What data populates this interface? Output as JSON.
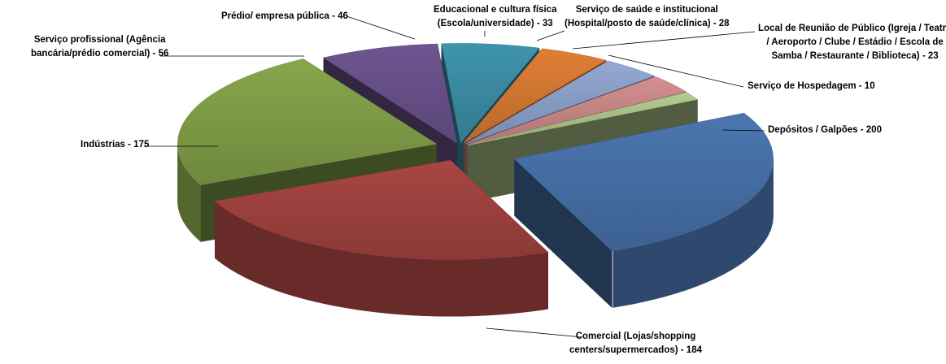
{
  "chart_data": {
    "type": "pie",
    "style": "3d-exploded",
    "slices": [
      {
        "name": "Depósitos / Galpões",
        "value": 200,
        "color": "#4a76b0",
        "label_lines": [
          "Depósitos  / Galpões - 200"
        ]
      },
      {
        "name": "Comercial (Lojas/shopping centers/supermercados)",
        "value": 184,
        "color": "#a84643",
        "label_lines": [
          "Comercial  (Lojas/shopping",
          "centers/supermercados)  - 184"
        ]
      },
      {
        "name": "Indústrias",
        "value": 175,
        "color": "#87a64b",
        "label_lines": [
          "Indústrias  - 175"
        ]
      },
      {
        "name": "Serviço profissional (Agência bancária/prédio comercial)",
        "value": 56,
        "color": "#6e5591",
        "label_lines": [
          "Serviço profissional  (Agência",
          "bancária/prédio  comercial) - 56"
        ]
      },
      {
        "name": "Prédio/ empresa pública",
        "value": 46,
        "color": "#3f94ad",
        "label_lines": [
          "Prédio/  empresa pública - 46"
        ]
      },
      {
        "name": "Educacional e cultura física (Escola/universidade)",
        "value": 33,
        "color": "#e07f35",
        "label_lines": [
          "Educacional  e cultura  física",
          "(Escola/universidade)  - 33"
        ]
      },
      {
        "name": "Serviço de saúde e institucional (Hospital/posto de saúde/clínica)",
        "value": 28,
        "color": "#93a8d3",
        "label_lines": [
          "Serviço de saúde  e institucional",
          "(Hospital/posto  de saúde/clínica) - 28"
        ]
      },
      {
        "name": "Local de Reunião de Público (Igreja / Teatro / Aeroporto / Clube / Estádio / Escola de Samba / Restaurante / Biblioteca)",
        "value": 23,
        "color": "#d48f8f",
        "label_lines": [
          "Local de Reunião de Público  (Igreja / Teatro",
          "/ Aeroporto   / Clube  / Estádio / Escola de",
          "Samba  / Restaurante  / Biblioteca) - 23"
        ]
      },
      {
        "name": "Serviço de Hospedagem",
        "value": 10,
        "color": "#b5cc8e",
        "label_lines": [
          "Serviço de Hospedagem  - 10"
        ]
      }
    ],
    "legend": "none"
  }
}
